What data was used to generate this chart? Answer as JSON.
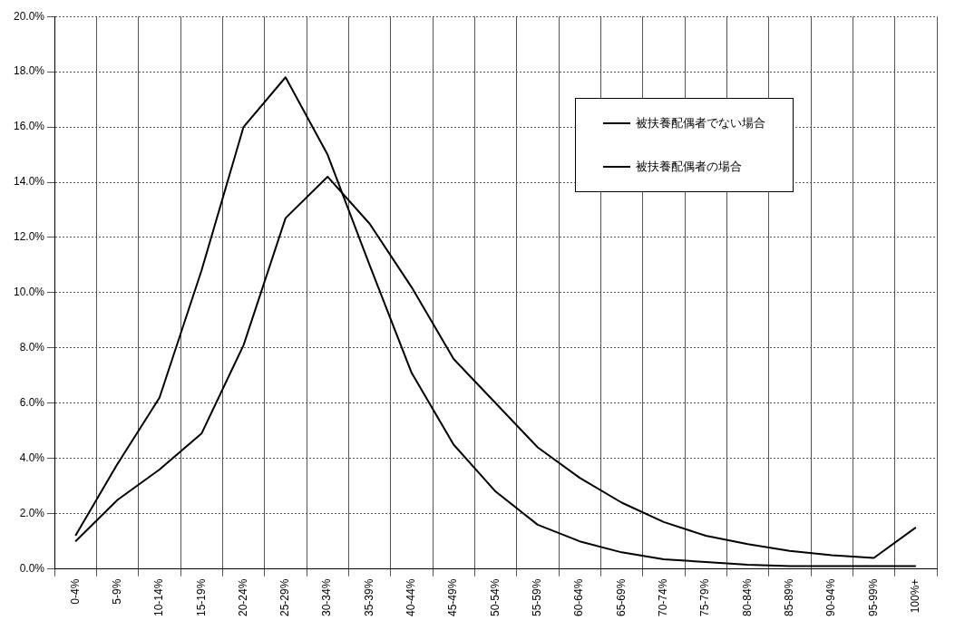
{
  "chart_data": {
    "type": "line",
    "categories": [
      "0-4%",
      "5-9%",
      "10-14%",
      "15-19%",
      "20-24%",
      "25-29%",
      "30-34%",
      "35-39%",
      "40-44%",
      "45-49%",
      "50-54%",
      "55-59%",
      "60-64%",
      "65-69%",
      "70-74%",
      "75-79%",
      "80-84%",
      "85-89%",
      "90-94%",
      "95-99%",
      "100%+"
    ],
    "series": [
      {
        "name": "被扶養配偶者でない場合",
        "color": "#000000",
        "values": [
          1.2,
          3.8,
          6.2,
          10.8,
          16.0,
          17.8,
          15.0,
          11.0,
          7.1,
          4.5,
          2.8,
          1.6,
          1.0,
          0.6,
          0.35,
          0.25,
          0.15,
          0.1,
          0.1,
          0.1,
          0.1
        ]
      },
      {
        "name": "被扶養配偶者の場合",
        "color": "#000000",
        "values": [
          1.0,
          2.5,
          3.6,
          4.9,
          8.1,
          12.7,
          14.2,
          12.5,
          10.2,
          7.6,
          6.0,
          4.4,
          3.3,
          2.4,
          1.7,
          1.2,
          0.9,
          0.65,
          0.5,
          0.4,
          1.5
        ]
      }
    ],
    "ylim": [
      0,
      20
    ],
    "yticks": [
      {
        "value": 0,
        "label": "0.0%"
      },
      {
        "value": 2,
        "label": "2.0%"
      },
      {
        "value": 4,
        "label": "4.0%"
      },
      {
        "value": 6,
        "label": "6.0%"
      },
      {
        "value": 8,
        "label": "8.0%"
      },
      {
        "value": 10,
        "label": "10.0%"
      },
      {
        "value": 12,
        "label": "12.0%"
      },
      {
        "value": 14,
        "label": "14.0%"
      },
      {
        "value": 16,
        "label": "16.0%"
      },
      {
        "value": 18,
        "label": "18.0%"
      },
      {
        "value": 20,
        "label": "20.0%"
      }
    ],
    "grid": true,
    "legend": "top right",
    "marker": "none",
    "line_style": "solid"
  }
}
